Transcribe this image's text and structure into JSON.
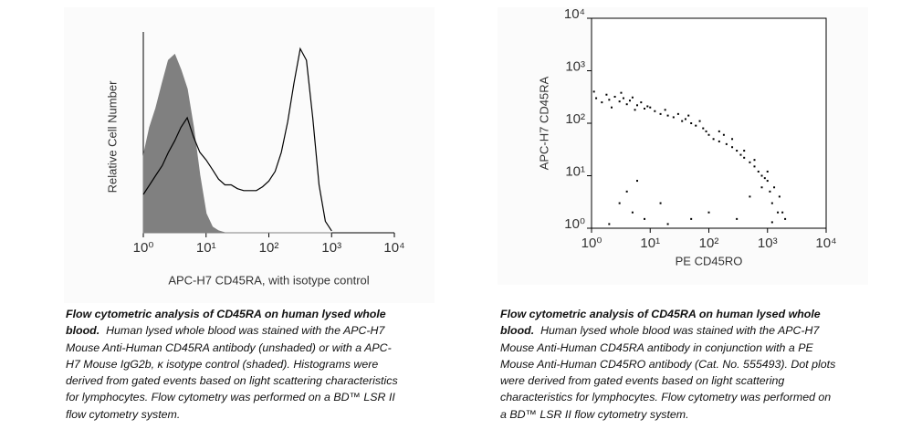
{
  "chart_data": [
    {
      "type": "histogram-line",
      "x_label": "APC-H7 CD45RA, with isotype control",
      "y_label": "Relative Cell Number",
      "xscale": "log",
      "xlim": [
        1,
        10000
      ],
      "ylim": [
        0,
        100
      ],
      "xticks": [
        {
          "value": 1,
          "label": "10⁰"
        },
        {
          "value": 10,
          "label": "10¹"
        },
        {
          "value": 100,
          "label": "10²"
        },
        {
          "value": 1000,
          "label": "10³"
        },
        {
          "value": 10000,
          "label": "10⁴"
        }
      ],
      "x": [
        1,
        1.26,
        1.58,
        2,
        2.51,
        3.16,
        3.98,
        5.01,
        6.31,
        7.94,
        10,
        12.6,
        15.8,
        20,
        25.1,
        31.6,
        39.8,
        50.1,
        63.1,
        79.4,
        100,
        126,
        158,
        200,
        251,
        316,
        398,
        501,
        631,
        794,
        1000
      ],
      "series": [
        {
          "color": "#808080",
          "fill": true,
          "values": [
            40,
            55,
            65,
            78,
            90,
            93,
            85,
            75,
            55,
            30,
            10,
            3,
            1,
            0,
            0,
            0,
            0,
            0,
            0,
            0,
            0,
            0,
            0,
            0,
            0,
            0,
            0,
            0,
            0,
            0,
            0
          ]
        },
        {
          "color": "#000000",
          "fill": false,
          "values": [
            20,
            25,
            30,
            35,
            42,
            48,
            55,
            60,
            50,
            42,
            38,
            33,
            28,
            25,
            25,
            23,
            22,
            22,
            22,
            24,
            27,
            32,
            42,
            58,
            78,
            96,
            90,
            60,
            25,
            6,
            1
          ]
        }
      ]
    },
    {
      "type": "scatter",
      "x_label": "PE CD45RO",
      "y_label": "APC-H7 CD45RA",
      "xscale": "log",
      "yscale": "log",
      "xlim": [
        1,
        10000
      ],
      "ylim": [
        1,
        10000
      ],
      "xticks": [
        {
          "value": 1,
          "label": "10⁰"
        },
        {
          "value": 10,
          "label": "10¹"
        },
        {
          "value": 100,
          "label": "10²"
        },
        {
          "value": 1000,
          "label": "10³"
        },
        {
          "value": 10000,
          "label": "10⁴"
        }
      ],
      "yticks": [
        {
          "value": 1,
          "label": "10⁰"
        },
        {
          "value": 10,
          "label": "10¹"
        },
        {
          "value": 100,
          "label": "10²"
        },
        {
          "value": 1000,
          "label": "10³"
        },
        {
          "value": 10000,
          "label": "10⁴"
        }
      ],
      "color": "#000000",
      "x": [
        1.2,
        1.5,
        1.8,
        2,
        2.5,
        3,
        3.5,
        4,
        4.5,
        5,
        6,
        7,
        8,
        1.1,
        2.2,
        3.2,
        5.5,
        9,
        10,
        12,
        15,
        18,
        20,
        25,
        30,
        35,
        40,
        50,
        60,
        70,
        80,
        90,
        45,
        100,
        120,
        150,
        180,
        200,
        250,
        300,
        350,
        400,
        500,
        600,
        700,
        800,
        900,
        150,
        250,
        400,
        600,
        1000,
        1100,
        1200,
        1300,
        1500,
        1600,
        1800,
        2000,
        1000,
        800,
        1200,
        3,
        5,
        8,
        20,
        50,
        100,
        4,
        6,
        300,
        2,
        15,
        500
      ],
      "y": [
        300,
        250,
        350,
        280,
        320,
        260,
        300,
        230,
        270,
        310,
        220,
        250,
        190,
        400,
        200,
        380,
        180,
        210,
        200,
        170,
        150,
        180,
        140,
        130,
        150,
        110,
        120,
        100,
        90,
        110,
        80,
        70,
        140,
        60,
        50,
        45,
        60,
        40,
        35,
        30,
        25,
        22,
        18,
        15,
        12,
        10,
        9,
        70,
        50,
        30,
        20,
        8,
        5,
        3,
        6,
        2,
        4,
        2,
        1.5,
        12,
        6,
        1.3,
        3,
        2,
        1.5,
        1.2,
        1.5,
        2,
        5,
        8,
        1.5,
        1.2,
        3,
        4
      ]
    }
  ],
  "captions": [
    {
      "title": "Flow cytometric analysis of CD45RA on human lysed whole blood.",
      "text": "Human lysed whole blood was stained with the APC-H7 Mouse Anti-Human CD45RA antibody (unshaded) or with a APC-H7 Mouse IgG2b, κ isotype control (shaded).  Histograms were derived from gated events based on light scattering characteristics for lymphocytes. Flow cytometry was performed on a BD™ LSR II flow cytometry system."
    },
    {
      "title": "Flow cytometric analysis of CD45RA on human lysed whole blood.",
      "text": "Human lysed whole blood was stained with the APC-H7 Mouse Anti-Human CD45RA antibody in conjunction with a PE Mouse Anti-Human CD45RO antibody (Cat. No. 555493).  Dot plots were derived from gated events based on light scattering characteristics for lymphocytes. Flow cytometry was performed on a BD™ LSR II flow cytometry system."
    }
  ]
}
